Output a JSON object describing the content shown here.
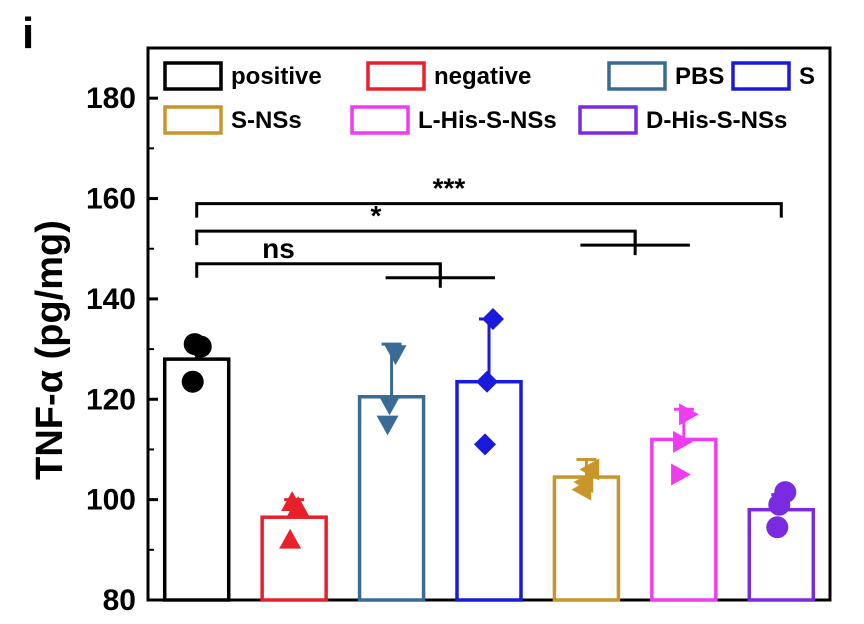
{
  "panel_label": "i",
  "chart_data": {
    "type": "bar",
    "ylabel": "TNF-α (pg/mg)",
    "xlabel": "",
    "ylim": [
      80,
      190
    ],
    "yticks": [
      80,
      100,
      120,
      140,
      160,
      180
    ],
    "legend_position": "top",
    "categories": [
      "positive",
      "negative",
      "PBS",
      "S",
      "S-NSs",
      "L-His-S-NSs",
      "D-His-S-NSs"
    ],
    "colors": [
      "#000000",
      "#e8202a",
      "#3a6a96",
      "#1a1adc",
      "#c8962a",
      "#f03cf0",
      "#7a2ae0"
    ],
    "markers": [
      "circle",
      "triangle-up",
      "triangle-down",
      "diamond",
      "triangle-left",
      "triangle-right",
      "circle"
    ],
    "values": [
      128,
      96.5,
      120.5,
      123.5,
      104.5,
      112,
      98
    ],
    "error_high": [
      131,
      100,
      131,
      136,
      108,
      118,
      101
    ],
    "points": [
      [
        130.5,
        131,
        123.5
      ],
      [
        98.5,
        99.5,
        92
      ],
      [
        129,
        119,
        115
      ],
      [
        136,
        123.5,
        111
      ],
      [
        106,
        103.5,
        102
      ],
      [
        117,
        111.5,
        105
      ],
      [
        101.5,
        99,
        94.5
      ]
    ],
    "significance": [
      {
        "label": "***",
        "group1": 0,
        "group2": [
          6
        ],
        "y": 159
      },
      {
        "label": "*",
        "group1": 0,
        "group2": [
          4,
          5
        ],
        "y": 153.5
      },
      {
        "label": "ns",
        "group1": 0,
        "group2": [
          2,
          3
        ],
        "y": 147
      }
    ]
  }
}
